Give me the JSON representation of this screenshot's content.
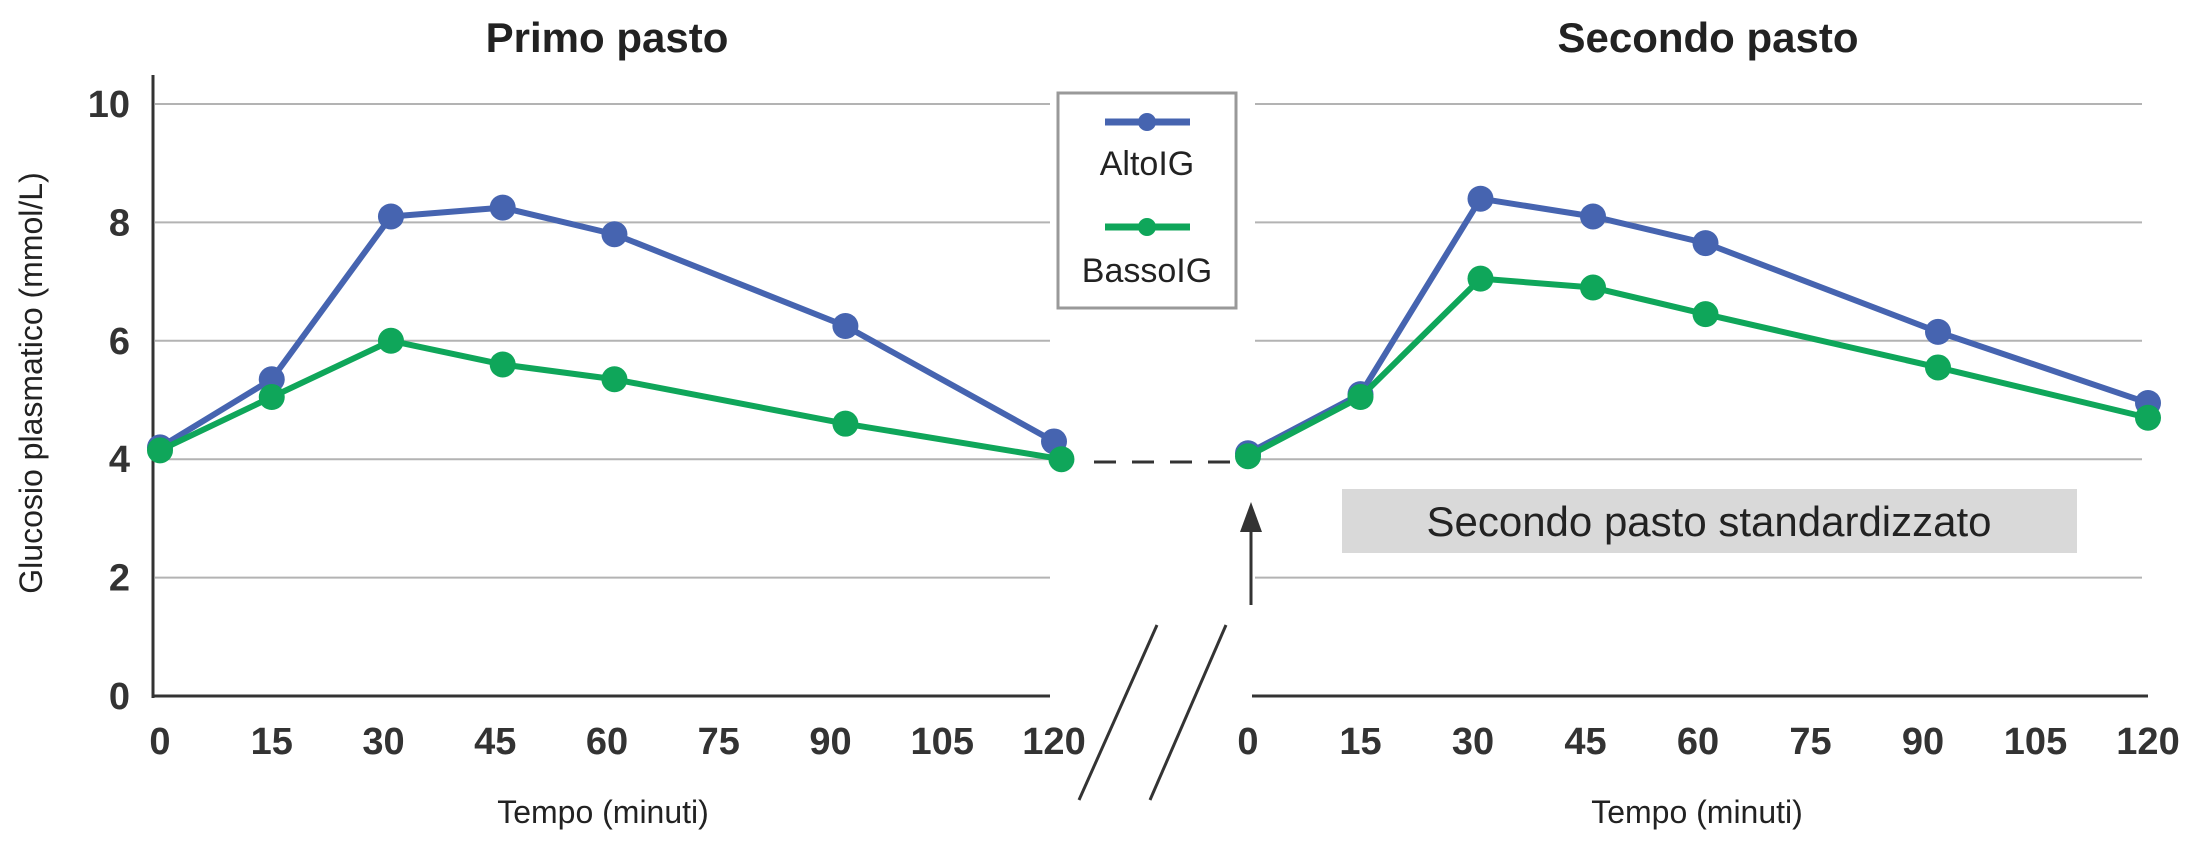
{
  "chart_data": [
    {
      "type": "line",
      "title": "Primo pasto",
      "xlabel": "Tempo (minuti)",
      "ylabel": "Glucosio plasmatico (mmol/L)",
      "x_ticks": [
        "0",
        "15",
        "30",
        "45",
        "60",
        "75",
        "90",
        "105",
        "120"
      ],
      "y_ticks": [
        "0",
        "2",
        "4",
        "6",
        "8",
        "10"
      ],
      "xlim": [
        0,
        120
      ],
      "ylim": [
        0,
        10
      ],
      "grid": true,
      "series": [
        {
          "name": "AltoIG",
          "color": "#4664b0",
          "x": [
            0,
            15,
            31,
            46,
            61,
            92,
            120
          ],
          "y": [
            4.2,
            5.35,
            8.1,
            8.25,
            7.8,
            6.25,
            4.3
          ]
        },
        {
          "name": "BassoIG",
          "color": "#0fa65a",
          "x": [
            0,
            15,
            31,
            46,
            61,
            92,
            121
          ],
          "y": [
            4.15,
            5.05,
            6.0,
            5.6,
            5.35,
            4.6,
            4.0
          ]
        }
      ]
    },
    {
      "type": "line",
      "title": "Secondo pasto",
      "xlabel": "Tempo (minuti)",
      "x_ticks": [
        "0",
        "15",
        "30",
        "45",
        "60",
        "75",
        "90",
        "105",
        "120"
      ],
      "xlim": [
        0,
        120
      ],
      "ylim": [
        0,
        10
      ],
      "grid": true,
      "annotation": "Secondo pasto standardizzato",
      "series": [
        {
          "name": "AltoIG",
          "color": "#4664b0",
          "x": [
            0,
            15,
            31,
            46,
            61,
            92,
            120
          ],
          "y": [
            4.1,
            5.1,
            8.4,
            8.1,
            7.65,
            6.15,
            4.95
          ]
        },
        {
          "name": "BassoIG",
          "color": "#0fa65a",
          "x": [
            0,
            15,
            31,
            46,
            61,
            92,
            120
          ],
          "y": [
            4.05,
            5.05,
            7.05,
            6.9,
            6.45,
            5.55,
            4.7
          ]
        }
      ]
    }
  ],
  "legend": {
    "placement": "center-top",
    "items": [
      {
        "label": "AltoIG",
        "color": "#4664b0"
      },
      {
        "label": "BassoIG",
        "color": "#0fa65a"
      }
    ]
  }
}
